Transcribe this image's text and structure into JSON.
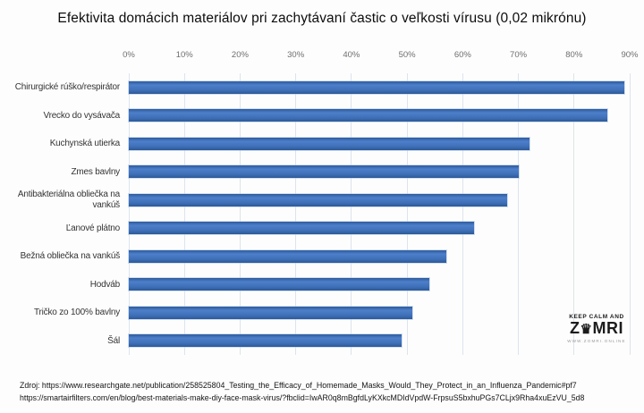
{
  "title": "Efektivita domácich materiálov pri zachytávaní častic o veľkosti vírusu (0,02 mikrónu)",
  "chart_data": {
    "type": "bar",
    "orientation": "horizontal",
    "title": "Efektivita domácich materiálov pri zachytávaní častic o veľkosti vírusu (0,02 mikrónu)",
    "categories": [
      "Chirurgické rúško/respirátor",
      "Vrecko do vysávača",
      "Kuchynská utierka",
      "Zmes bavlny",
      "Antibakteriálna obliečka na vankúš",
      "Ľanové plátno",
      "Bežná obliečka na vankúš",
      "Hodváb",
      "Tričko zo 100% bavlny",
      "Šál"
    ],
    "values": [
      89,
      86,
      72,
      70,
      68,
      62,
      57,
      54,
      51,
      49
    ],
    "unit": "%",
    "xlim": [
      0,
      90
    ],
    "x_ticks": [
      "0%",
      "10%",
      "20%",
      "30%",
      "40%",
      "50%",
      "60%",
      "70%",
      "80%",
      "90%"
    ],
    "grid": true,
    "legend": false,
    "bar_color": "#3e6fb6",
    "gridline_color": "#dde4ed"
  },
  "watermark": {
    "top": "KEEP CALM AND",
    "main_prefix": "Z",
    "crown_icon": "♛",
    "main_suffix": "MRI",
    "subtext": "WWW.ZOMRI.ONLINE"
  },
  "source": {
    "line1": "Zdroj: https://www.researchgate.net/publication/258525804_Testing_the_Efficacy_of_Homemade_Masks_Would_They_Protect_in_an_Influenza_Pandemic#pf7",
    "line2": "https://smartairfilters.com/en/blog/best-materials-make-diy-face-mask-virus/?fbclid=IwAR0q8mBgfdLyKXkcMDIdVpdW-FrpsuS5bxhuPGs7CLjx9Rha4xuEzVU_5d8"
  }
}
